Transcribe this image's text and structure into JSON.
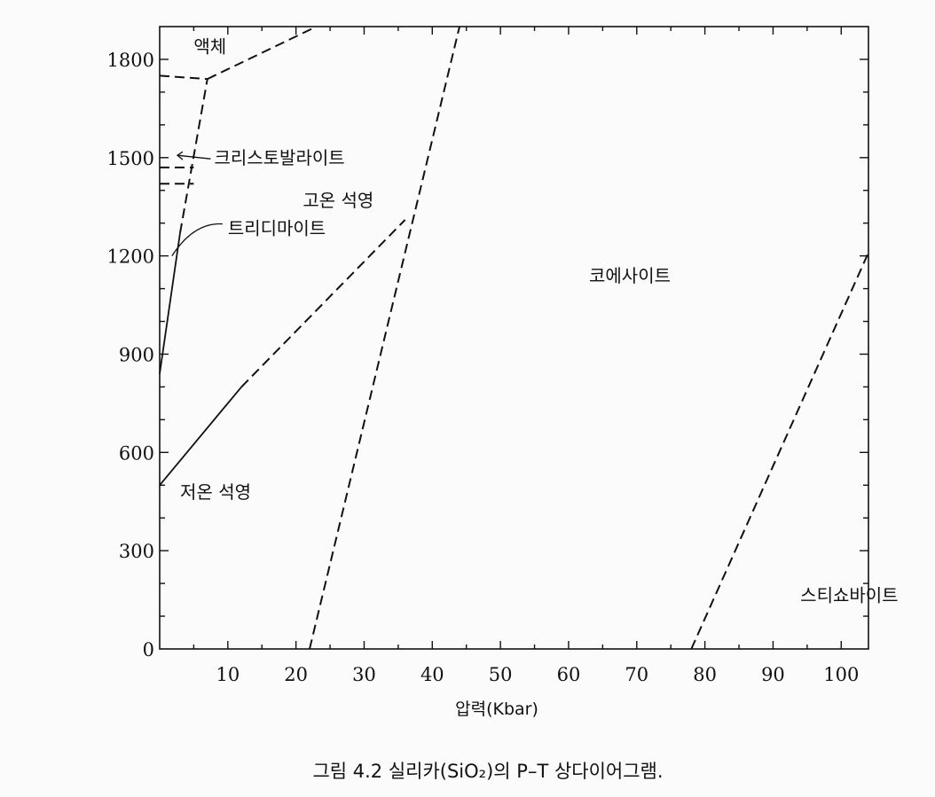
{
  "chart_data": {
    "type": "line",
    "title": "",
    "xlabel": "압력(Kbar)",
    "ylabel": "",
    "xlim": [
      0,
      104
    ],
    "ylim": [
      0,
      1900
    ],
    "x_ticks": [
      10,
      20,
      30,
      40,
      50,
      60,
      70,
      80,
      90,
      100
    ],
    "y_ticks": [
      0,
      300,
      600,
      900,
      1200,
      1500,
      1800
    ],
    "boundaries": [
      {
        "style": "dashed",
        "points": [
          [
            22,
            0
          ],
          [
            44,
            1900
          ]
        ]
      },
      {
        "style": "solid",
        "points": [
          [
            0,
            500
          ],
          [
            12,
            800
          ]
        ]
      },
      {
        "style": "dashed",
        "points": [
          [
            12,
            800
          ],
          [
            36,
            1310
          ]
        ]
      },
      {
        "style": "solid",
        "points": [
          [
            0,
            840
          ],
          [
            3,
            1270
          ]
        ]
      },
      {
        "style": "dashed",
        "points": [
          [
            3,
            1270
          ],
          [
            7,
            1740
          ]
        ]
      },
      {
        "style": "dashed",
        "points": [
          [
            7,
            1740
          ],
          [
            23,
            1900
          ]
        ]
      },
      {
        "style": "dashed",
        "points": [
          [
            0,
            1750
          ],
          [
            7,
            1740
          ]
        ]
      },
      {
        "style": "dashed",
        "points": [
          [
            0,
            1470
          ],
          [
            5,
            1470
          ]
        ]
      },
      {
        "style": "dashed",
        "points": [
          [
            0,
            1420
          ],
          [
            5,
            1420
          ]
        ]
      },
      {
        "style": "dashed",
        "points": [
          [
            78,
            0
          ],
          [
            104,
            1210
          ]
        ]
      }
    ],
    "region_labels": [
      {
        "text": "액체",
        "x": 5,
        "y": 1820
      },
      {
        "text": "크리스토발라이트",
        "x": 8,
        "y": 1480
      },
      {
        "text": "고온 석영",
        "x": 21,
        "y": 1350
      },
      {
        "text": "트리디마이트",
        "x": 10,
        "y": 1265
      },
      {
        "text": "코에사이트",
        "x": 63,
        "y": 1120
      },
      {
        "text": "저온 석영",
        "x": 3,
        "y": 460
      },
      {
        "text": "스티쇼바이트",
        "x": 94,
        "y": 145
      }
    ]
  },
  "caption": "그림 4.2  실리카(SiO₂)의 P–T 상다이어그램."
}
